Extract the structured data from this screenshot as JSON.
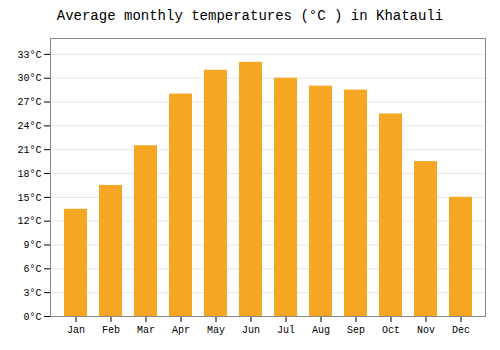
{
  "chart_data": {
    "type": "bar",
    "title": "Average monthly temperatures (°C ) in Khatauli",
    "categories": [
      "Jan",
      "Feb",
      "Mar",
      "Apr",
      "May",
      "Jun",
      "Jul",
      "Aug",
      "Sep",
      "Oct",
      "Nov",
      "Dec"
    ],
    "values": [
      13.5,
      16.5,
      21.5,
      28.0,
      31.0,
      32.0,
      30.0,
      29.0,
      28.5,
      25.5,
      19.5,
      15.0
    ],
    "color": "#F5A623",
    "ylim": [
      0,
      35
    ],
    "yticks": [
      {
        "value": 0,
        "label": "0°C"
      },
      {
        "value": 3,
        "label": "3°C"
      },
      {
        "value": 6,
        "label": "6°C"
      },
      {
        "value": 9,
        "label": "9°C"
      },
      {
        "value": 12,
        "label": "12°C"
      },
      {
        "value": 15,
        "label": "15°C"
      },
      {
        "value": 18,
        "label": "18°C"
      },
      {
        "value": 21,
        "label": "21°C"
      },
      {
        "value": 24,
        "label": "24°C"
      },
      {
        "value": 27,
        "label": "27°C"
      },
      {
        "value": 30,
        "label": "30°C"
      },
      {
        "value": 33,
        "label": "33°C"
      }
    ],
    "grid": true
  }
}
